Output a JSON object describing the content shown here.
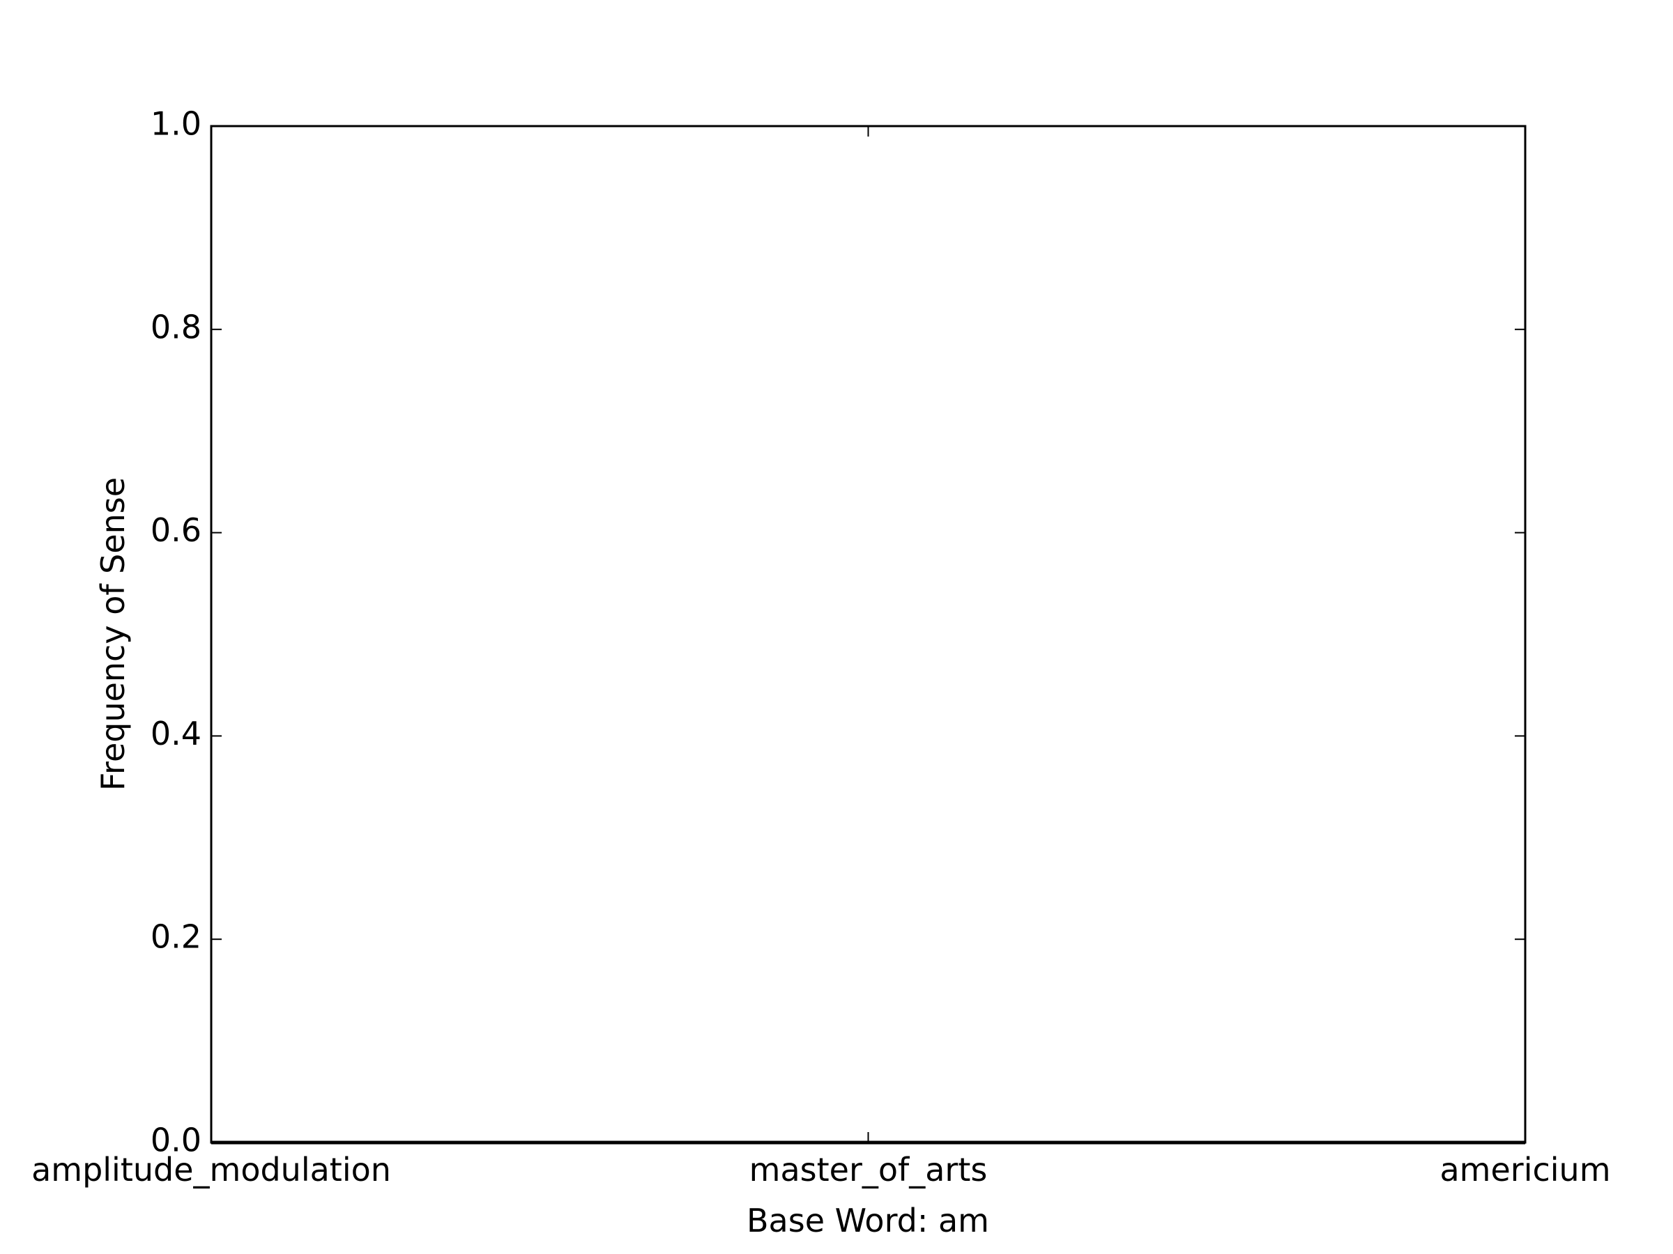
{
  "chart_data": {
    "type": "line",
    "title": "",
    "xlabel": "Base Word: am",
    "ylabel": "Frequency of Sense",
    "categories": [
      "amplitude_modulation",
      "master_of_arts",
      "americium"
    ],
    "series": [
      {
        "values": [
          0.0,
          0.0,
          0.0
        ],
        "color": "#000000"
      }
    ],
    "ylim": [
      0.0,
      1.0
    ],
    "yticks": [
      "0.0",
      "0.2",
      "0.4",
      "0.6",
      "0.8",
      "1.0"
    ],
    "grid": false,
    "legend": false
  }
}
